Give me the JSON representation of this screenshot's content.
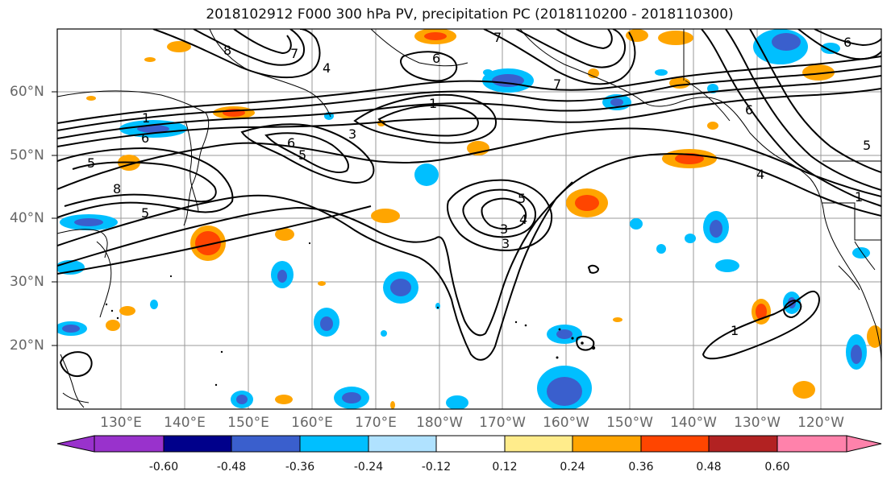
{
  "title": "2018102912 F000 300 hPa PV, precipitation PC (2018110200 - 2018110300)",
  "lat_labels": [
    "60°N",
    "50°N",
    "40°N",
    "30°N",
    "20°N"
  ],
  "lon_labels": [
    "130°E",
    "140°E",
    "150°E",
    "160°E",
    "170°E",
    "180°W",
    "170°W",
    "160°W",
    "150°W",
    "140°W",
    "130°W",
    "120°W"
  ],
  "colorbar": {
    "ticks": [
      "-0.60",
      "-0.48",
      "-0.36",
      "-0.24",
      "-0.12",
      "0.12",
      "0.24",
      "0.36",
      "0.48",
      "0.60"
    ],
    "colors": [
      "#9932cc",
      "#00008b",
      "#3a5fcd",
      "#00bfff",
      "#b0e2ff",
      "#ffffff",
      "#ffec8b",
      "#ffa500",
      "#ff4500",
      "#b22222",
      "#ff82ab"
    ]
  },
  "contour_labels": [
    "8",
    "7",
    "6",
    "5",
    "4",
    "3",
    "1",
    "5",
    "6",
    "3",
    "8",
    "6",
    "7",
    "1",
    "7",
    "5",
    "3",
    "4",
    "5",
    "6",
    "4",
    "1",
    "6",
    "1",
    "5"
  ]
}
